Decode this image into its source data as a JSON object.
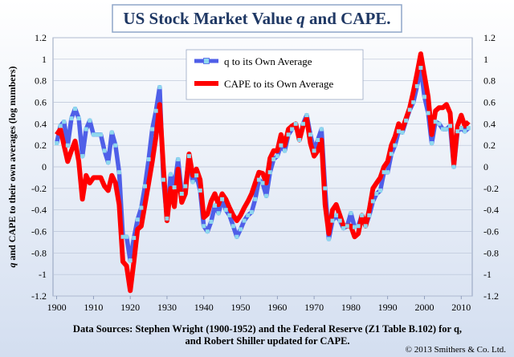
{
  "chart_data": {
    "type": "line",
    "title": "US Stock Market Value q and CAPE.",
    "title_prefix": "US Stock Market Value ",
    "title_q": "q",
    "title_suffix": " and CAPE.",
    "ylabel": "q and CAPE to their own averages (log numbers)",
    "ylabel_q": "q",
    "ylabel_rest": " and CAPE to their own averages (log numbers)",
    "xlim": [
      1899,
      2013
    ],
    "ylim": [
      -1.2,
      1.2
    ],
    "y_ticks": [
      "1.2",
      "1",
      "0.8",
      "0.6",
      "0.4",
      "0.2",
      "0",
      "-0.2",
      "-0.4",
      "-0.6",
      "-0.8",
      "-1",
      "-1.2"
    ],
    "x_ticks": [
      "1900",
      "1910",
      "1920",
      "1930",
      "1940",
      "1950",
      "1960",
      "1970",
      "1980",
      "1990",
      "2000",
      "2010"
    ],
    "grid": "horizontal",
    "legend_position": "top-center",
    "series": [
      {
        "name": "q to its Own Average",
        "color": "#4f5fe8",
        "marker_color": "#8fd8ee",
        "x": [
          1900,
          1901,
          1902,
          1903,
          1904,
          1905,
          1906,
          1907,
          1908,
          1909,
          1910,
          1911,
          1912,
          1913,
          1914,
          1915,
          1916,
          1917,
          1918,
          1919,
          1920,
          1921,
          1922,
          1923,
          1924,
          1925,
          1926,
          1927,
          1928,
          1929,
          1930,
          1931,
          1932,
          1933,
          1934,
          1935,
          1936,
          1937,
          1938,
          1939,
          1940,
          1941,
          1942,
          1943,
          1944,
          1945,
          1946,
          1947,
          1948,
          1949,
          1950,
          1951,
          1952,
          1953,
          1954,
          1955,
          1956,
          1957,
          1958,
          1959,
          1960,
          1961,
          1962,
          1963,
          1964,
          1965,
          1966,
          1967,
          1968,
          1969,
          1970,
          1971,
          1972,
          1973,
          1974,
          1975,
          1976,
          1977,
          1978,
          1979,
          1980,
          1981,
          1982,
          1983,
          1984,
          1985,
          1986,
          1987,
          1988,
          1989,
          1990,
          1991,
          1992,
          1993,
          1994,
          1995,
          1996,
          1997,
          1998,
          1999,
          2000,
          2001,
          2002,
          2003,
          2004,
          2005,
          2006,
          2007,
          2008,
          2009,
          2010,
          2011,
          2012
        ],
        "values": [
          0.22,
          0.38,
          0.42,
          0.2,
          0.45,
          0.54,
          0.45,
          0.1,
          0.35,
          0.43,
          0.3,
          0.3,
          0.3,
          0.15,
          0.04,
          0.32,
          0.2,
          -0.05,
          -0.65,
          -0.65,
          -0.87,
          -0.66,
          -0.49,
          -0.38,
          -0.18,
          0.07,
          0.35,
          0.52,
          0.74,
          -0.12,
          -0.48,
          -0.07,
          -0.19,
          0.07,
          -0.25,
          -0.18,
          0.1,
          -0.14,
          -0.08,
          -0.22,
          -0.55,
          -0.6,
          -0.51,
          -0.36,
          -0.43,
          -0.3,
          -0.4,
          -0.45,
          -0.55,
          -0.65,
          -0.58,
          -0.5,
          -0.45,
          -0.42,
          -0.3,
          -0.12,
          -0.15,
          -0.27,
          -0.05,
          0.07,
          0.1,
          0.2,
          0.15,
          0.3,
          0.35,
          0.4,
          0.25,
          0.4,
          0.48,
          0.3,
          0.15,
          0.25,
          0.35,
          -0.2,
          -0.67,
          -0.5,
          -0.45,
          -0.5,
          -0.57,
          -0.55,
          -0.43,
          -0.56,
          -0.55,
          -0.45,
          -0.55,
          -0.45,
          -0.32,
          -0.25,
          -0.22,
          -0.05,
          -0.05,
          0.12,
          0.2,
          0.33,
          0.32,
          0.43,
          0.53,
          0.6,
          0.75,
          0.92,
          0.65,
          0.5,
          0.22,
          0.42,
          0.4,
          0.35,
          0.35,
          0.38,
          0.0,
          0.33,
          0.36,
          0.33,
          0.36
        ]
      },
      {
        "name": "CAPE to its Own Average",
        "color": "#ff0000",
        "x": [
          1900,
          1901,
          1902,
          1903,
          1904,
          1905,
          1906,
          1907,
          1908,
          1909,
          1910,
          1911,
          1912,
          1913,
          1914,
          1915,
          1916,
          1917,
          1918,
          1919,
          1920,
          1921,
          1922,
          1923,
          1924,
          1925,
          1926,
          1927,
          1928,
          1929,
          1930,
          1931,
          1932,
          1933,
          1934,
          1935,
          1936,
          1937,
          1938,
          1939,
          1940,
          1941,
          1942,
          1943,
          1944,
          1945,
          1946,
          1947,
          1948,
          1949,
          1950,
          1951,
          1952,
          1953,
          1954,
          1955,
          1956,
          1957,
          1958,
          1959,
          1960,
          1961,
          1962,
          1963,
          1964,
          1965,
          1966,
          1967,
          1968,
          1969,
          1970,
          1971,
          1972,
          1973,
          1974,
          1975,
          1976,
          1977,
          1978,
          1979,
          1980,
          1981,
          1982,
          1983,
          1984,
          1985,
          1986,
          1987,
          1988,
          1989,
          1990,
          1991,
          1992,
          1993,
          1994,
          1995,
          1996,
          1997,
          1998,
          1999,
          2000,
          2001,
          2002,
          2003,
          2004,
          2005,
          2006,
          2007,
          2008,
          2009,
          2010,
          2011,
          2012
        ],
        "values": [
          0.3,
          0.35,
          0.2,
          0.05,
          0.15,
          0.24,
          0.05,
          -0.3,
          -0.08,
          -0.15,
          -0.1,
          -0.1,
          -0.1,
          -0.18,
          -0.22,
          -0.08,
          -0.15,
          -0.35,
          -0.88,
          -0.92,
          -1.15,
          -0.88,
          -0.58,
          -0.55,
          -0.35,
          -0.15,
          0.05,
          0.28,
          0.58,
          0.0,
          -0.5,
          -0.2,
          -0.37,
          -0.02,
          -0.33,
          -0.25,
          0.12,
          -0.08,
          -0.02,
          -0.12,
          -0.47,
          -0.44,
          -0.32,
          -0.25,
          -0.35,
          -0.25,
          -0.3,
          -0.38,
          -0.45,
          -0.5,
          -0.45,
          -0.38,
          -0.32,
          -0.25,
          -0.15,
          -0.05,
          -0.06,
          -0.15,
          0.08,
          0.15,
          0.15,
          0.3,
          0.2,
          0.35,
          0.38,
          0.4,
          0.25,
          0.38,
          0.45,
          0.22,
          0.1,
          0.15,
          0.25,
          -0.35,
          -0.62,
          -0.4,
          -0.35,
          -0.45,
          -0.55,
          -0.55,
          -0.55,
          -0.65,
          -0.62,
          -0.45,
          -0.55,
          -0.4,
          -0.2,
          -0.15,
          -0.1,
          0.0,
          0.05,
          0.2,
          0.28,
          0.4,
          0.35,
          0.45,
          0.55,
          0.7,
          0.87,
          1.05,
          0.85,
          0.65,
          0.3,
          0.52,
          0.55,
          0.55,
          0.58,
          0.5,
          0.02,
          0.38,
          0.48,
          0.38,
          0.42
        ]
      }
    ]
  },
  "footer": {
    "sources_line1": "Data Sources: Stephen Wright (1900-1952) and the Federal Reserve (Z1 Table B.102) for q,",
    "sources_line2": "and Robert Shiller updated for CAPE.",
    "copyright": "© 2013 Smithers & Co. Ltd."
  }
}
